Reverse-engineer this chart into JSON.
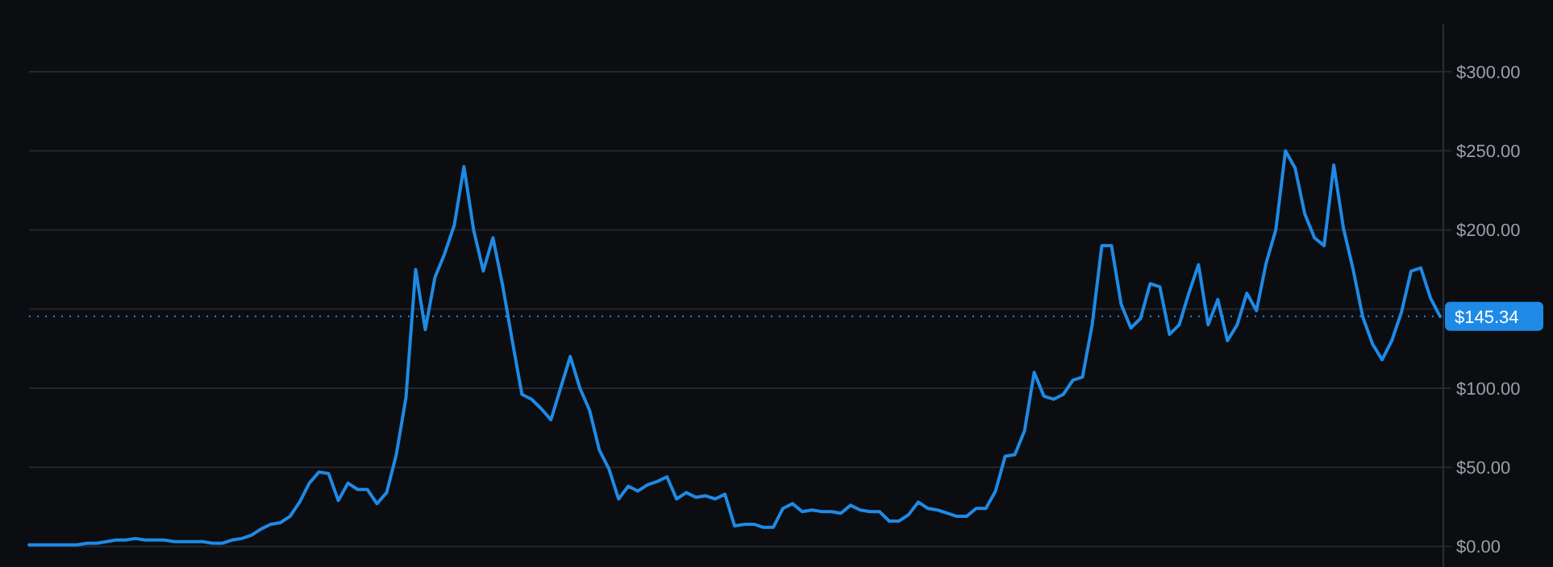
{
  "chart_data": {
    "type": "line",
    "categories": [
      null,
      null,
      null,
      null,
      null,
      null,
      null,
      null,
      null,
      null,
      null,
      null,
      null,
      null,
      null,
      null,
      null,
      null,
      null,
      null,
      null,
      null,
      null,
      null,
      null,
      null,
      null,
      null,
      null,
      null,
      null,
      null,
      null,
      null,
      null,
      null,
      null,
      null,
      null,
      null,
      null,
      null,
      null,
      null,
      null,
      null,
      null,
      null,
      null,
      null,
      null,
      null,
      null,
      null,
      null,
      null,
      null,
      null,
      null,
      null,
      null,
      null,
      null,
      null,
      null,
      null,
      null,
      null,
      null,
      null,
      null,
      null,
      null,
      null,
      null,
      null,
      null,
      null,
      null,
      null,
      null,
      null,
      null,
      null,
      null,
      null,
      null,
      null,
      null,
      null,
      null,
      null,
      null,
      null,
      null,
      null,
      null,
      null,
      null,
      null,
      null,
      null,
      null,
      null,
      null,
      null,
      null,
      null,
      null,
      null,
      null,
      null,
      null,
      null,
      null,
      null,
      null,
      null,
      null,
      null,
      null,
      null,
      null,
      null,
      null,
      null,
      null,
      null,
      null,
      null,
      null,
      null,
      null,
      null,
      null,
      null,
      null,
      null,
      null,
      null,
      null,
      null,
      null,
      null,
      null,
      null,
      null
    ],
    "series": [
      {
        "color": "#1e8ae6",
        "values": [
          1,
          1,
          1,
          1,
          1,
          1,
          2,
          2,
          3,
          4,
          4,
          5,
          4,
          4,
          4,
          3,
          3,
          3,
          3,
          2,
          2,
          4,
          5,
          7,
          11,
          14,
          15,
          19,
          28,
          40,
          47,
          46,
          29,
          40,
          36,
          36,
          27,
          34,
          58,
          94,
          175,
          137,
          170,
          185,
          203,
          240,
          200,
          174,
          195,
          165,
          130,
          96,
          93,
          87,
          80,
          100,
          120,
          100,
          86,
          61,
          49,
          30,
          38,
          35,
          39,
          41,
          44,
          30,
          34,
          31,
          32,
          30,
          33,
          13,
          14,
          14,
          12,
          12,
          24,
          27,
          22,
          23,
          22,
          22,
          21,
          26,
          23,
          22,
          22,
          16,
          16,
          20,
          28,
          24,
          23,
          21,
          19,
          19,
          24,
          24,
          35,
          57,
          58,
          73,
          110,
          95,
          93,
          96,
          105,
          107,
          140,
          190,
          190,
          153,
          138,
          144,
          166,
          164,
          134,
          140,
          160,
          178,
          140,
          156,
          130,
          140,
          160,
          149,
          179,
          200,
          250,
          239,
          210,
          195,
          190,
          241,
          201,
          175,
          145,
          128,
          118,
          130,
          148,
          174,
          176,
          157,
          145.34
        ]
      }
    ],
    "ylim": [
      -13,
      330
    ],
    "yticks": [
      {
        "value": 0,
        "label": "$0.00"
      },
      {
        "value": 50,
        "label": "$50.00"
      },
      {
        "value": 100,
        "label": "$100.00"
      },
      {
        "value": 150,
        "label": null
      },
      {
        "value": 200,
        "label": "$200.00"
      },
      {
        "value": 250,
        "label": "$250.00"
      },
      {
        "value": 300,
        "label": "$300.00"
      }
    ],
    "grid": "y",
    "tick_labels": "y",
    "marker": "none",
    "line_style": "solid",
    "ref_lines": [
      {
        "axis": "y",
        "value": 145.34,
        "label": "$145.34",
        "color": "#1e8ae6",
        "line_style": "dotted"
      }
    ]
  }
}
